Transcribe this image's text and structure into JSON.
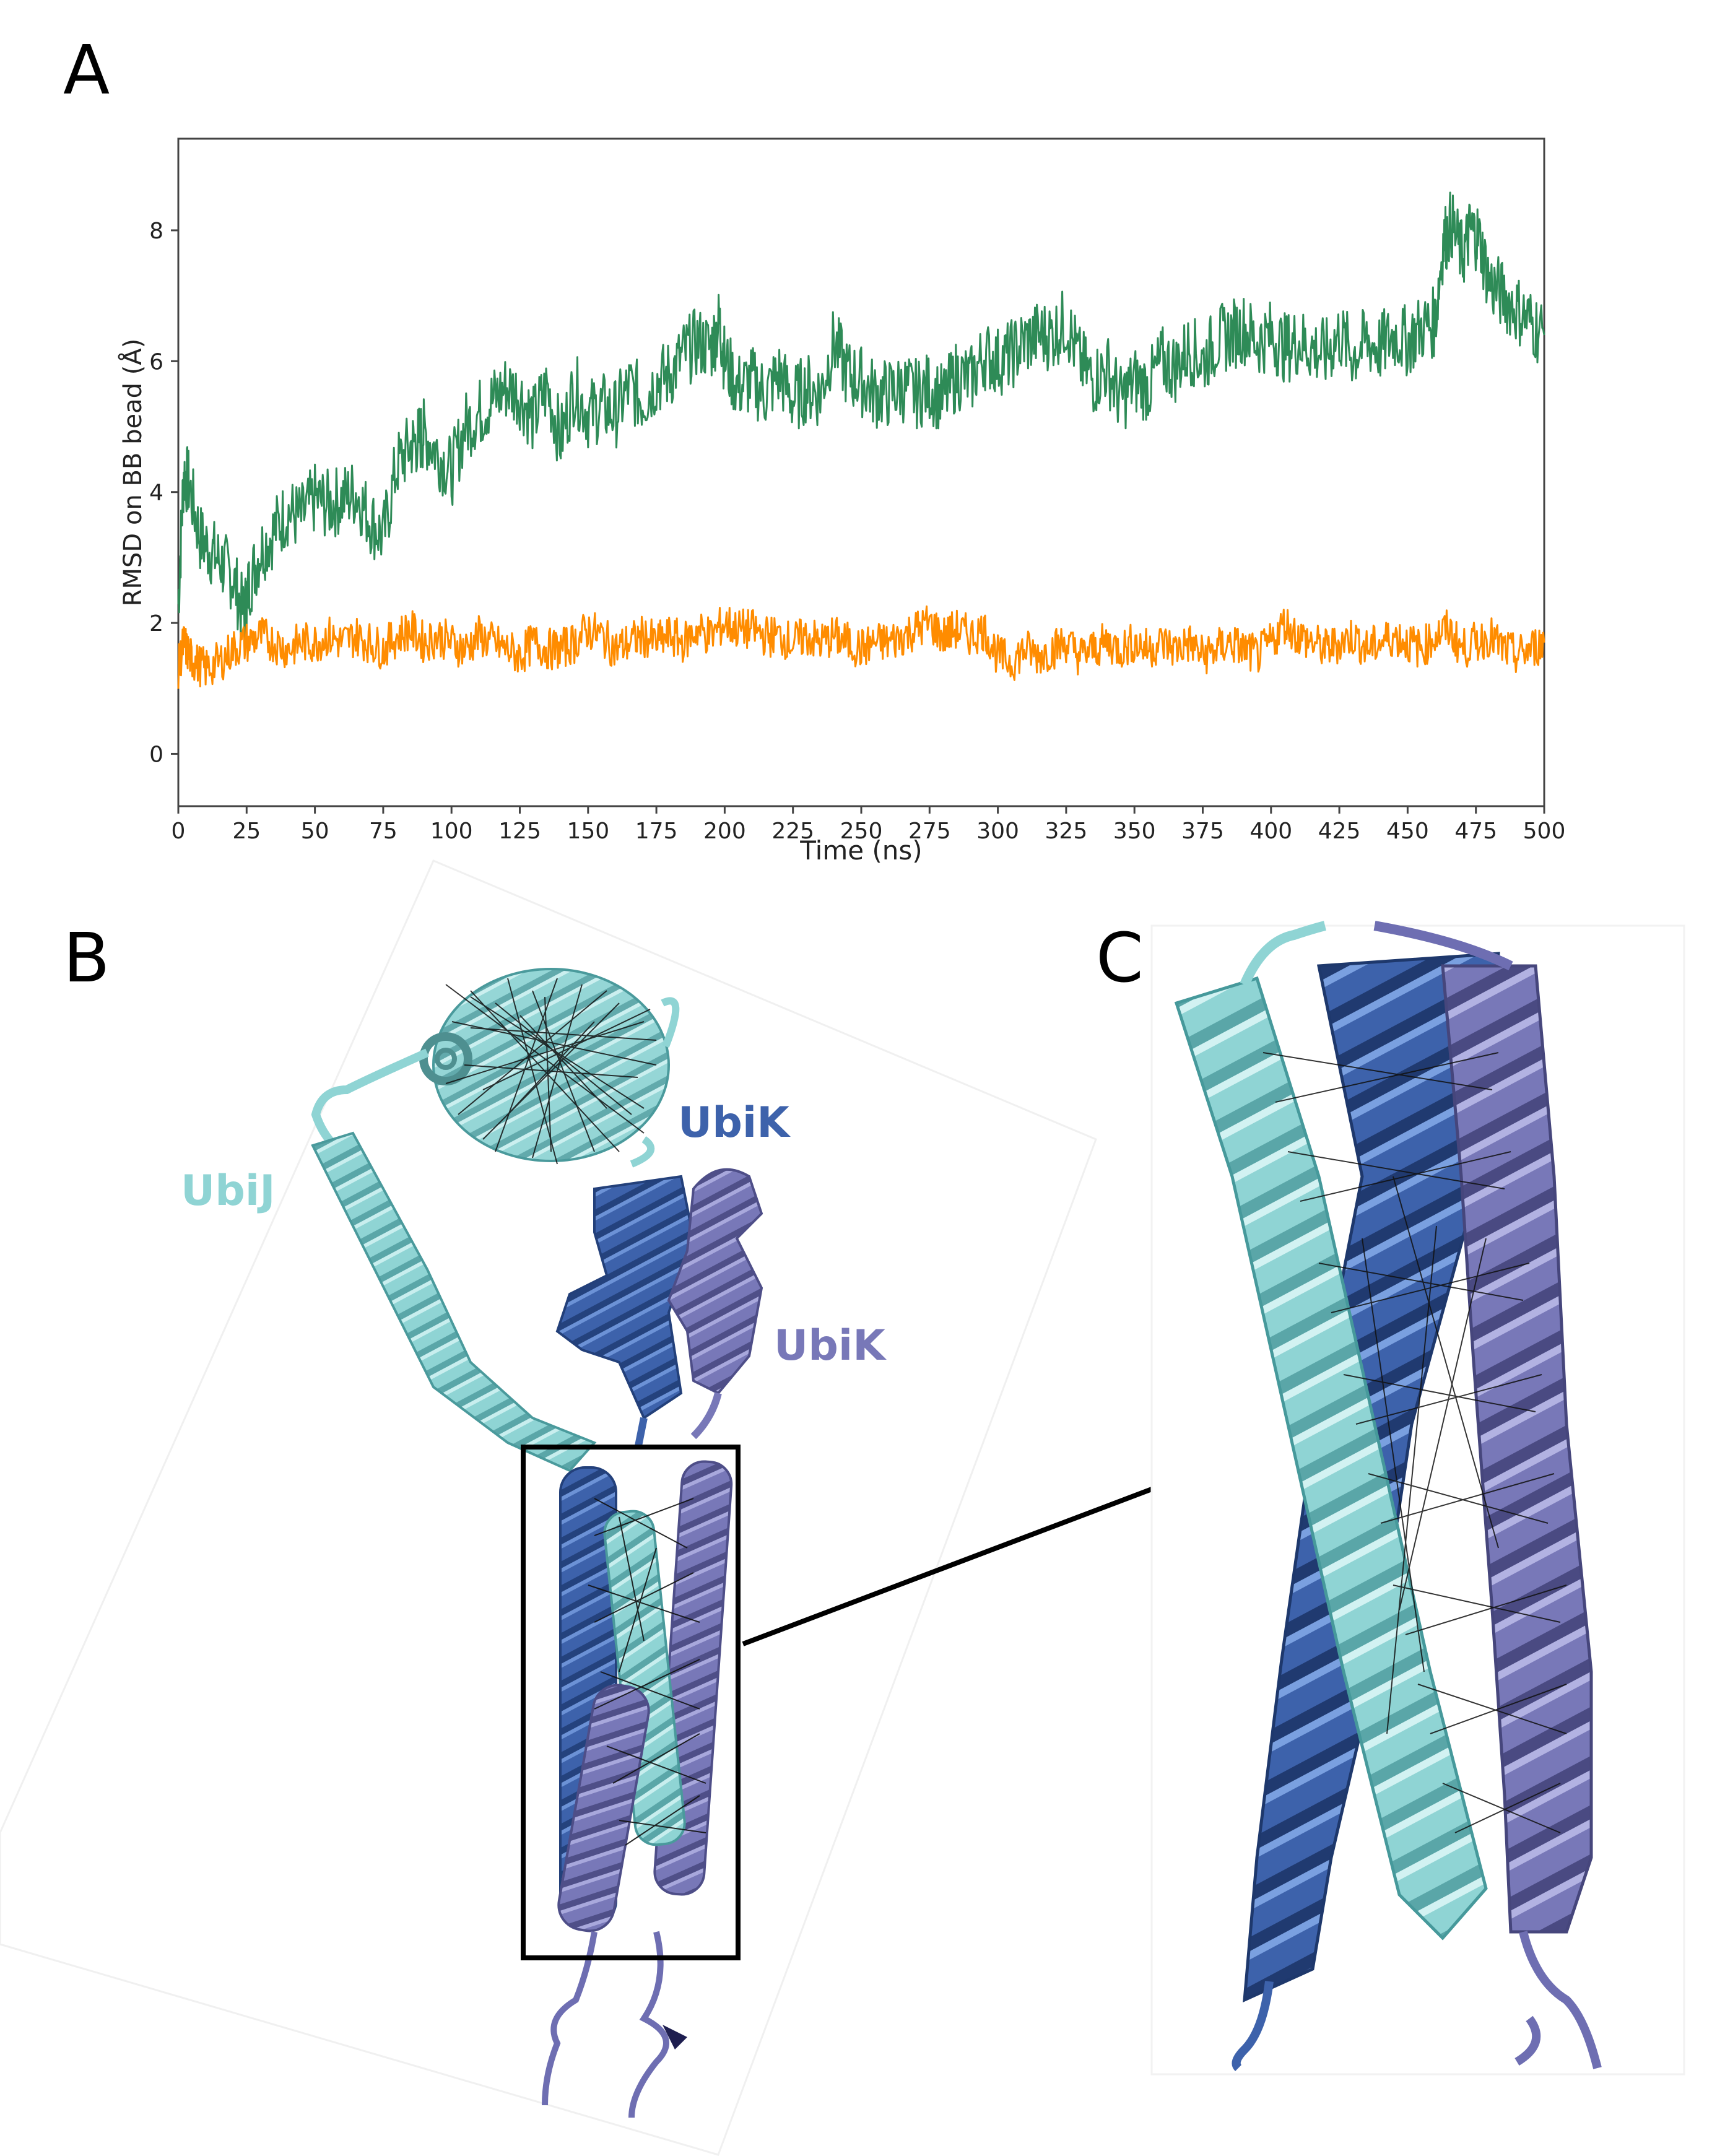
{
  "panels": {
    "a": "A",
    "b": "B",
    "c": "C"
  },
  "labels": {
    "ubij": "UbiJ",
    "ubik_dark": "UbiK",
    "ubik_light": "UbiK"
  },
  "colors": {
    "green_series": "#2e8b57",
    "orange_series": "#ff8c00",
    "ubij": "#8fd4d4",
    "ubik_dark": "#3d62ab",
    "ubik_light": "#7878b8"
  },
  "chart_data": {
    "type": "line",
    "xlabel": "Time (ns)",
    "ylabel": "RMSD on BB bead (Å)",
    "xlim": [
      0,
      500
    ],
    "ylim": [
      -0.8,
      9.4
    ],
    "xticks": [
      0,
      25,
      50,
      75,
      100,
      125,
      150,
      175,
      200,
      225,
      250,
      275,
      300,
      325,
      350,
      375,
      400,
      425,
      450,
      475,
      500
    ],
    "yticks": [
      0,
      2,
      4,
      6,
      8
    ],
    "grid": false,
    "series": [
      {
        "color": "#2e8b57",
        "x": [
          0,
          2,
          4,
          8,
          12,
          16,
          20,
          24,
          26,
          30,
          35,
          40,
          45,
          50,
          55,
          60,
          65,
          70,
          75,
          80,
          85,
          88,
          90,
          95,
          100,
          105,
          110,
          115,
          120,
          125,
          130,
          135,
          140,
          145,
          150,
          155,
          160,
          165,
          170,
          175,
          180,
          185,
          190,
          195,
          198,
          200,
          205,
          210,
          215,
          220,
          225,
          230,
          235,
          240,
          245,
          250,
          255,
          260,
          265,
          270,
          275,
          280,
          285,
          290,
          295,
          300,
          305,
          310,
          315,
          320,
          325,
          330,
          335,
          340,
          345,
          350,
          355,
          360,
          365,
          370,
          375,
          380,
          385,
          390,
          395,
          400,
          405,
          410,
          415,
          420,
          425,
          430,
          435,
          440,
          445,
          450,
          455,
          460,
          463,
          466,
          470,
          473,
          476,
          480,
          485,
          490,
          495,
          500
        ],
        "y": [
          2.3,
          4.3,
          4.1,
          3.3,
          3.1,
          2.9,
          2.7,
          2.1,
          2.6,
          3.1,
          3.4,
          3.7,
          3.6,
          3.9,
          3.8,
          3.9,
          4.0,
          3.6,
          3.3,
          4.4,
          4.7,
          4.8,
          4.9,
          4.6,
          4.3,
          5.0,
          5.2,
          5.4,
          5.6,
          5.5,
          5.1,
          5.6,
          4.8,
          5.6,
          5.2,
          5.3,
          5.2,
          5.6,
          5.4,
          5.7,
          5.8,
          6.1,
          6.3,
          6.2,
          6.6,
          6.0,
          5.6,
          5.7,
          5.5,
          5.8,
          5.4,
          5.6,
          5.5,
          6.3,
          5.8,
          5.7,
          5.5,
          5.5,
          5.6,
          5.5,
          5.6,
          5.4,
          5.8,
          5.7,
          6.1,
          6.0,
          6.1,
          6.3,
          6.4,
          6.4,
          6.6,
          6.0,
          5.7,
          5.9,
          5.4,
          5.7,
          5.6,
          6.0,
          5.9,
          6.2,
          6.0,
          6.3,
          6.4,
          6.5,
          6.3,
          6.4,
          6.2,
          6.3,
          6.2,
          6.1,
          6.4,
          6.1,
          6.3,
          6.2,
          6.4,
          6.3,
          6.5,
          6.6,
          7.8,
          8.1,
          7.6,
          8.0,
          7.9,
          7.2,
          7.0,
          6.8,
          6.6,
          6.4
        ]
      },
      {
        "color": "#ff8c00",
        "x": [
          0,
          2,
          4,
          6,
          10,
          15,
          20,
          25,
          30,
          35,
          40,
          45,
          50,
          55,
          60,
          65,
          70,
          75,
          80,
          85,
          90,
          95,
          100,
          105,
          110,
          115,
          120,
          125,
          130,
          135,
          140,
          145,
          150,
          155,
          160,
          165,
          170,
          175,
          180,
          185,
          190,
          195,
          200,
          205,
          210,
          215,
          220,
          225,
          230,
          235,
          240,
          245,
          250,
          255,
          260,
          265,
          270,
          275,
          280,
          285,
          290,
          295,
          300,
          305,
          310,
          315,
          320,
          325,
          330,
          335,
          340,
          345,
          350,
          355,
          360,
          365,
          370,
          375,
          380,
          385,
          390,
          395,
          400,
          405,
          410,
          415,
          420,
          425,
          430,
          435,
          440,
          445,
          450,
          455,
          460,
          465,
          470,
          475,
          480,
          485,
          490,
          495,
          500
        ],
        "y": [
          1.3,
          1.7,
          1.5,
          1.4,
          1.3,
          1.4,
          1.6,
          1.7,
          1.8,
          1.7,
          1.6,
          1.7,
          1.7,
          1.8,
          1.7,
          1.8,
          1.7,
          1.6,
          1.8,
          1.9,
          1.7,
          1.8,
          1.7,
          1.6,
          1.8,
          1.7,
          1.6,
          1.5,
          1.7,
          1.6,
          1.6,
          1.7,
          1.9,
          1.8,
          1.6,
          1.7,
          1.8,
          1.7,
          1.8,
          1.7,
          1.9,
          1.8,
          2.0,
          1.9,
          1.9,
          1.8,
          1.8,
          1.7,
          1.8,
          1.7,
          1.8,
          1.7,
          1.6,
          1.7,
          1.7,
          1.8,
          1.9,
          2.0,
          1.8,
          1.9,
          1.8,
          1.9,
          1.5,
          1.4,
          1.6,
          1.5,
          1.6,
          1.7,
          1.5,
          1.6,
          1.7,
          1.6,
          1.7,
          1.6,
          1.7,
          1.6,
          1.7,
          1.5,
          1.6,
          1.7,
          1.6,
          1.5,
          1.7,
          2.0,
          1.8,
          1.7,
          1.6,
          1.7,
          1.8,
          1.6,
          1.7,
          1.8,
          1.7,
          1.6,
          1.8,
          1.9,
          1.6,
          1.7,
          1.8,
          1.6,
          1.5,
          1.6,
          1.7
        ]
      }
    ]
  }
}
